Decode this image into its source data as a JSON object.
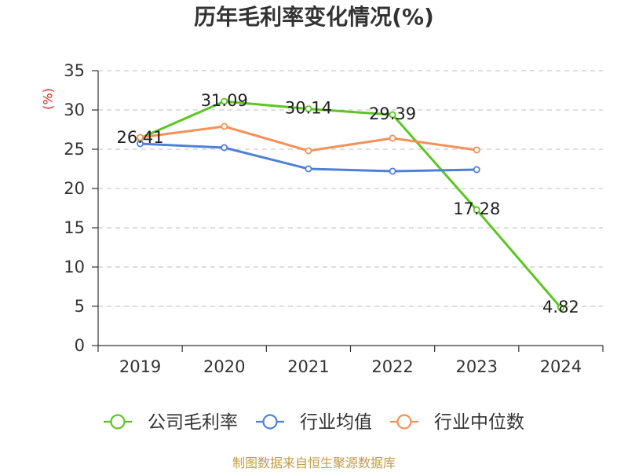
{
  "footer": "制图数据来自恒生聚源数据库",
  "colors": {
    "title": "#333333",
    "axis": "#333333",
    "grid": "#cccccc",
    "ylabel": "#e0201b",
    "footer": "#c49a4a"
  },
  "chart_data": {
    "type": "line",
    "title": "历年毛利率变化情况(%)",
    "xlabel": "",
    "ylabel": "(%)",
    "categories": [
      "2019",
      "2020",
      "2021",
      "2022",
      "2023",
      "2024"
    ],
    "ylim": [
      0,
      35
    ],
    "yticks": [
      0,
      5,
      10,
      15,
      20,
      25,
      30,
      35
    ],
    "grid": true,
    "legend_position": "bottom",
    "series": [
      {
        "name": "公司毛利率",
        "color": "#5cc524",
        "show_labels": true,
        "values": [
          26.41,
          31.09,
          30.14,
          29.39,
          17.28,
          4.82
        ]
      },
      {
        "name": "行业均值",
        "color": "#4f80d8",
        "show_labels": false,
        "values": [
          25.7,
          25.2,
          22.5,
          22.2,
          22.4,
          null
        ]
      },
      {
        "name": "行业中位数",
        "color": "#f39159",
        "show_labels": false,
        "values": [
          26.5,
          27.9,
          24.8,
          26.4,
          24.9,
          null
        ]
      }
    ]
  }
}
